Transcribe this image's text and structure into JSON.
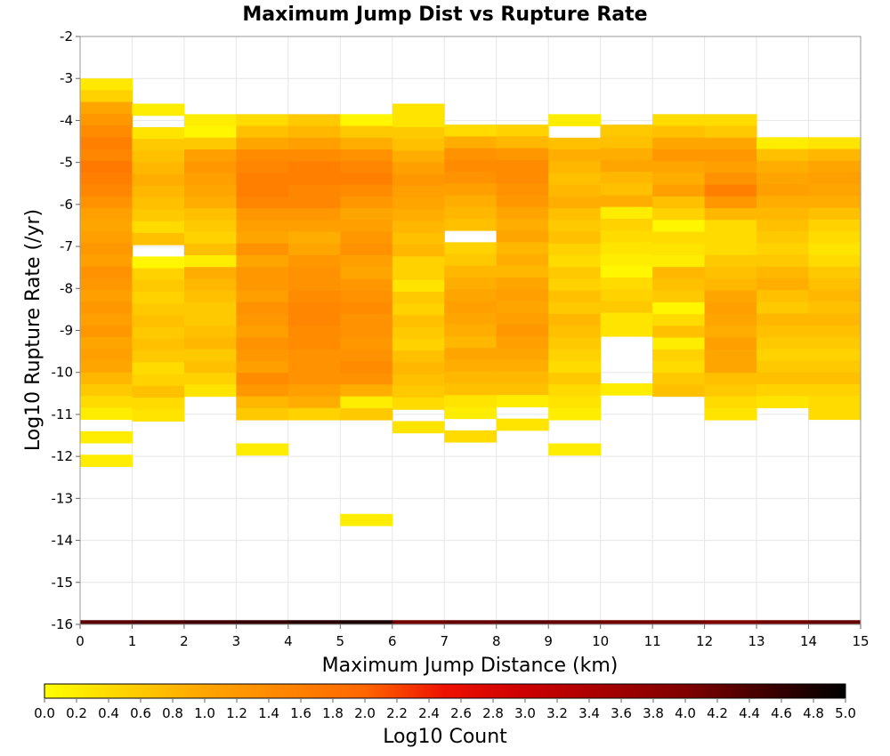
{
  "chart_data": {
    "type": "heatmap",
    "title": "Maximum Jump Dist vs Rupture Rate",
    "xlabel": "Maximum Jump Distance (km)",
    "ylabel": "Log10 Rupture Rate (/yr)",
    "colorbar_label": "Log10 Count",
    "xlim": [
      0,
      15
    ],
    "ylim": [
      -16,
      -2
    ],
    "x_ticks": [
      "0",
      "1",
      "2",
      "3",
      "4",
      "5",
      "6",
      "7",
      "8",
      "9",
      "10",
      "11",
      "12",
      "13",
      "14",
      "15"
    ],
    "y_ticks": [
      "-16",
      "-15",
      "-14",
      "-13",
      "-12",
      "-11",
      "-10",
      "-9",
      "-8",
      "-7",
      "-6",
      "-5",
      "-4",
      "-3",
      "-2"
    ],
    "colorbar_range": [
      0.0,
      5.0
    ],
    "colorbar_ticks": [
      "0.0",
      "0.2",
      "0.4",
      "0.6",
      "0.8",
      "1.0",
      "1.2",
      "1.4",
      "1.6",
      "1.8",
      "2.0",
      "2.2",
      "2.4",
      "2.6",
      "2.8",
      "3.0",
      "3.2",
      "3.4",
      "3.6",
      "3.8",
      "4.0",
      "4.2",
      "4.4",
      "4.6",
      "4.8",
      "5.0"
    ],
    "colormap": [
      "#ffff00",
      "#ffa500",
      "#ff6600",
      "#dd0000",
      "#800000",
      "#000000"
    ],
    "grid": true,
    "y_bin_size": 0.28,
    "columns": [
      {
        "x": 0,
        "y_top": -3.0,
        "values": [
          0.25,
          0.5,
          1.0,
          1.2,
          1.4,
          1.6,
          1.5,
          1.7,
          1.6,
          1.5,
          1.3,
          1.1,
          1.0,
          1.1,
          1.2,
          1.1,
          1.3,
          1.2,
          1.1,
          1.2,
          1.1,
          1.2,
          1.0,
          1.1,
          1.0,
          0.8,
          0.6,
          0.4,
          0.2,
          null,
          0.2,
          null,
          0.2
        ]
      },
      {
        "x": 1,
        "y_top": -3.6,
        "values": [
          0.2,
          null,
          0.3,
          0.6,
          0.7,
          0.8,
          0.9,
          0.8,
          0.7,
          0.6,
          0.4,
          0.7,
          null,
          0.1,
          0.5,
          0.6,
          0.5,
          0.6,
          0.7,
          0.6,
          0.7,
          0.6,
          0.4,
          0.5,
          0.7,
          0.4,
          0.3
        ]
      },
      {
        "x": 2,
        "y_top": -3.85,
        "values": [
          0.2,
          0.1,
          0.6,
          1.1,
          1.2,
          1.1,
          1.0,
          0.9,
          0.7,
          0.6,
          0.5,
          0.7,
          0.2,
          0.9,
          0.8,
          0.7,
          0.6,
          0.6,
          0.7,
          0.8,
          0.6,
          0.7,
          0.5,
          0.3
        ]
      },
      {
        "x": 3,
        "y_top": -3.85,
        "values": [
          0.4,
          0.7,
          1.0,
          1.4,
          1.5,
          1.6,
          1.6,
          1.5,
          1.2,
          1.1,
          1.0,
          1.3,
          1.0,
          1.2,
          1.2,
          1.1,
          1.3,
          1.2,
          1.1,
          1.3,
          1.2,
          1.1,
          1.4,
          1.2,
          0.8,
          0.6,
          null,
          null,
          0.2
        ]
      },
      {
        "x": 4,
        "y_top": -3.85,
        "values": [
          0.6,
          0.8,
          1.1,
          1.4,
          1.6,
          1.6,
          1.5,
          1.5,
          1.2,
          1.1,
          0.9,
          1.0,
          1.2,
          1.3,
          1.3,
          1.4,
          1.5,
          1.5,
          1.4,
          1.4,
          1.3,
          1.3,
          1.3,
          1.1,
          0.9,
          0.5
        ]
      },
      {
        "x": 5,
        "y_top": -3.85,
        "values": [
          0.1,
          0.6,
          0.9,
          1.3,
          1.5,
          1.6,
          1.4,
          1.2,
          1.0,
          1.1,
          1.2,
          1.3,
          1.1,
          1.0,
          1.2,
          1.3,
          1.4,
          1.3,
          1.3,
          1.2,
          1.3,
          1.4,
          1.3,
          0.9,
          0.2,
          0.6,
          null,
          null,
          null,
          null,
          null,
          null,
          null,
          null,
          0.2
        ]
      },
      {
        "x": 6,
        "y_top": -3.6,
        "values": [
          0.3,
          0.3,
          0.6,
          0.7,
          0.9,
          1.1,
          1.2,
          1.1,
          1.0,
          0.9,
          0.8,
          0.7,
          0.8,
          0.5,
          0.5,
          0.3,
          0.6,
          0.5,
          0.7,
          0.6,
          0.5,
          0.7,
          0.8,
          0.7,
          0.6,
          0.4,
          null,
          0.3
        ]
      },
      {
        "x": 7,
        "y_top": -4.1,
        "values": [
          0.4,
          0.9,
          1.3,
          1.4,
          1.3,
          1.1,
          0.9,
          0.8,
          0.7,
          null,
          0.5,
          0.6,
          0.8,
          0.9,
          1.0,
          1.1,
          1.0,
          0.9,
          0.8,
          1.0,
          0.9,
          0.8,
          0.7,
          0.3,
          0.2,
          null,
          0.4
        ]
      },
      {
        "x": 8,
        "y_top": -4.1,
        "values": [
          0.5,
          0.8,
          1.2,
          1.4,
          1.4,
          1.3,
          1.2,
          1.0,
          0.9,
          1.0,
          0.8,
          0.9,
          0.8,
          1.0,
          1.1,
          1.0,
          1.1,
          1.2,
          1.1,
          1.0,
          0.9,
          0.8,
          0.7,
          0.2,
          null,
          0.3
        ]
      },
      {
        "x": 9,
        "y_top": -3.85,
        "values": [
          0.2,
          null,
          0.7,
          0.9,
          0.8,
          0.7,
          0.8,
          0.9,
          0.7,
          0.6,
          0.7,
          0.5,
          0.4,
          0.6,
          0.5,
          0.7,
          0.6,
          0.8,
          0.7,
          0.6,
          0.5,
          0.4,
          0.6,
          0.4,
          0.3,
          0.2,
          null,
          null,
          0.2
        ]
      },
      {
        "x": 10,
        "y_top": -4.1,
        "values": [
          0.6,
          0.7,
          0.9,
          1.0,
          0.8,
          0.7,
          0.9,
          0.2,
          0.5,
          0.4,
          0.3,
          0.2,
          0.1,
          0.4,
          0.5,
          0.6,
          0.3,
          0.3,
          null,
          null,
          null,
          null,
          0.2
        ]
      },
      {
        "x": 11,
        "y_top": -3.85,
        "values": [
          0.4,
          0.7,
          1.0,
          1.2,
          1.0,
          0.9,
          1.1,
          0.7,
          0.5,
          0.1,
          0.4,
          0.3,
          0.2,
          0.8,
          0.7,
          0.6,
          0.1,
          0.4,
          0.7,
          0.2,
          0.5,
          0.4,
          0.6,
          0.7
        ]
      },
      {
        "x": 12,
        "y_top": -3.85,
        "values": [
          0.4,
          0.6,
          1.0,
          1.2,
          1.1,
          1.3,
          1.6,
          1.2,
          0.8,
          0.4,
          0.4,
          0.4,
          0.6,
          0.7,
          0.8,
          1.0,
          1.1,
          1.0,
          0.9,
          1.1,
          1.0,
          1.0,
          0.7,
          0.6,
          0.4,
          0.3
        ]
      },
      {
        "x": 13,
        "y_top": -4.4,
        "values": [
          0.2,
          0.7,
          0.9,
          1.0,
          1.1,
          0.9,
          0.8,
          0.7,
          0.6,
          0.5,
          0.6,
          0.8,
          0.9,
          0.7,
          0.6,
          0.8,
          0.7,
          0.6,
          0.5,
          0.6,
          0.7,
          0.5,
          0.3
        ]
      },
      {
        "x": 14,
        "y_top": -4.4,
        "values": [
          0.3,
          0.8,
          1.0,
          1.1,
          1.0,
          0.9,
          0.7,
          0.5,
          0.4,
          0.3,
          0.4,
          0.6,
          0.7,
          0.8,
          0.7,
          0.8,
          0.7,
          0.6,
          0.5,
          0.6,
          0.7,
          0.5,
          0.4,
          0.4
        ]
      }
    ],
    "bottom_row": {
      "y": -15.9,
      "values": [
        4.3,
        4.4,
        4.5,
        4.6,
        4.7,
        4.8,
        4.1,
        4.2,
        4.3,
        4.2,
        4.1,
        4.1,
        4.0,
        4.1,
        4.2
      ]
    }
  }
}
